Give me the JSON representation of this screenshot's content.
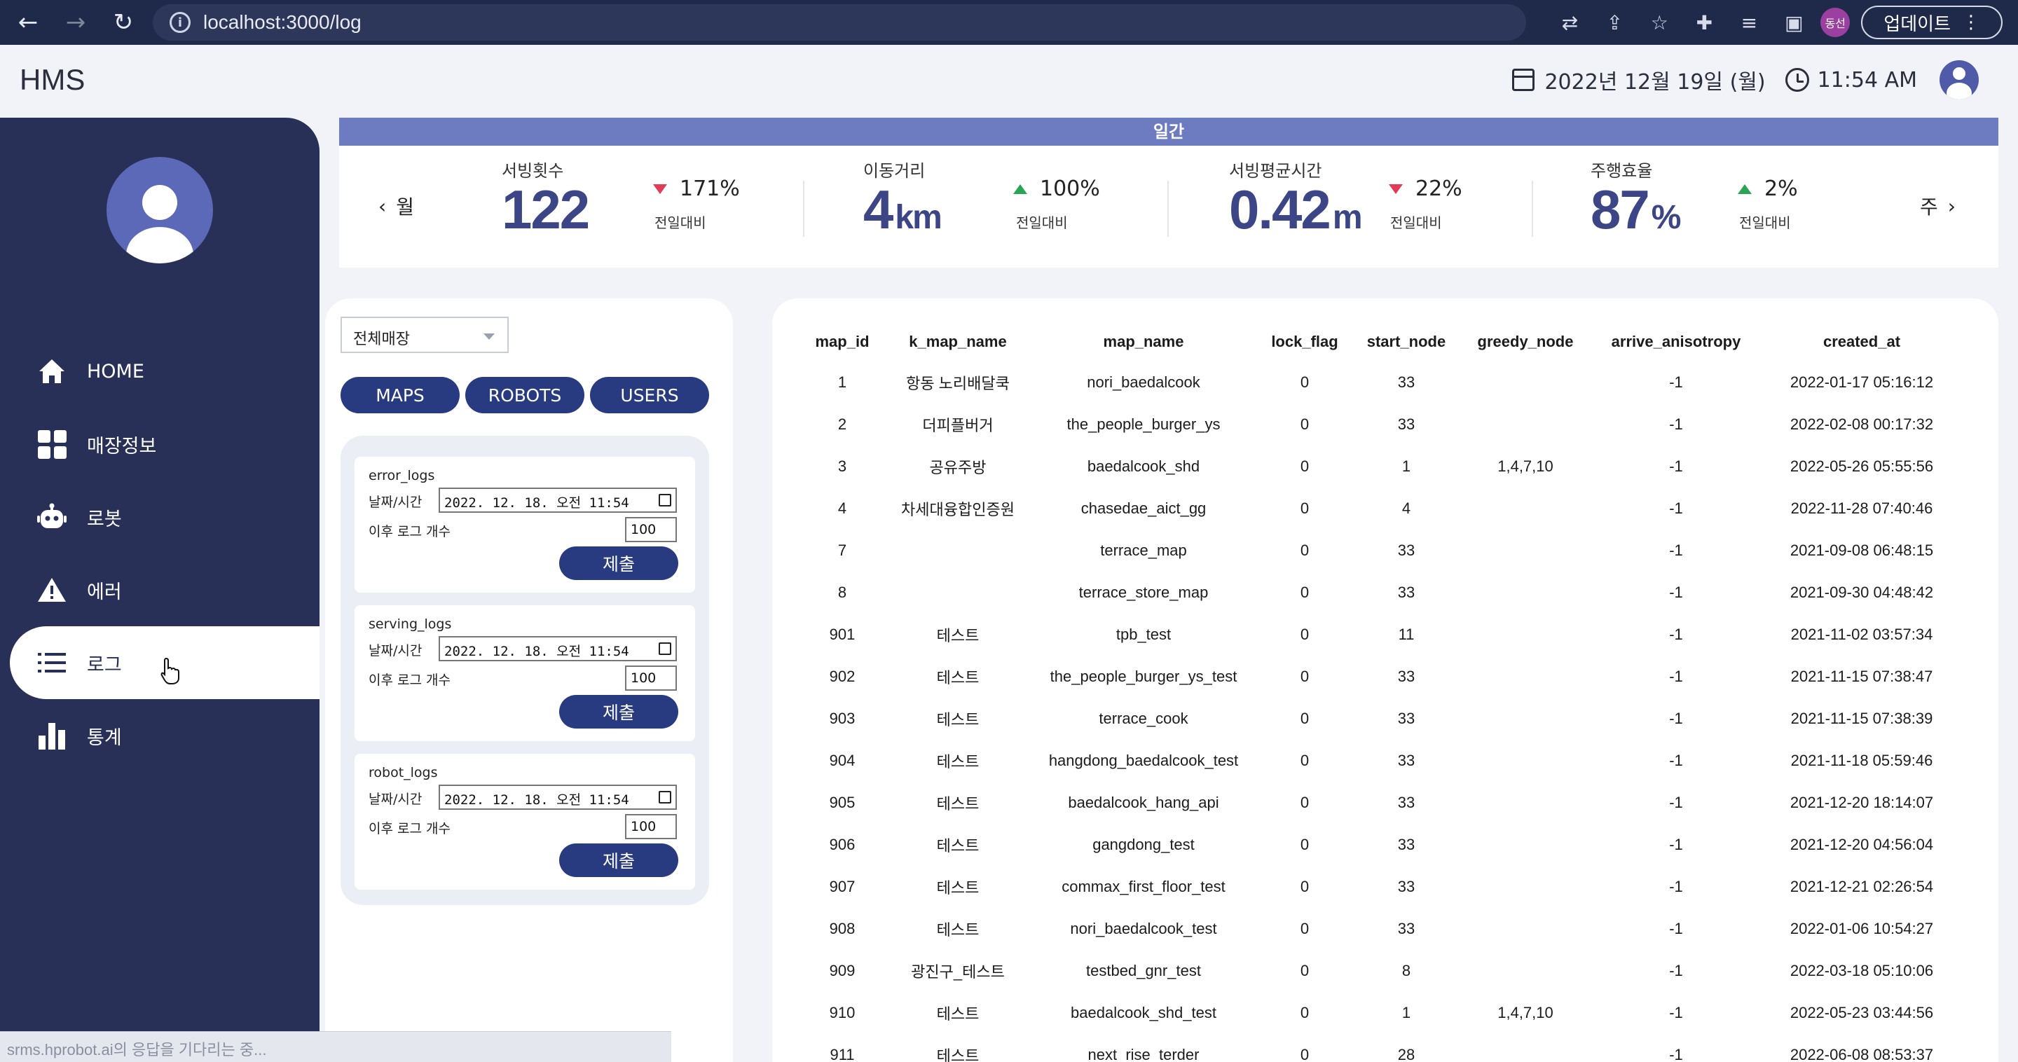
{
  "browser": {
    "url": "localhost:3000/log",
    "profile_label": "동선",
    "update_label": "업데이트",
    "icons": [
      "back-arrow-icon",
      "forward-arrow-icon",
      "reload-icon",
      "info-icon",
      "translate-icon",
      "share-icon",
      "star-icon",
      "extensions-icon",
      "media-icon",
      "sidebar-icon",
      "more-icon"
    ]
  },
  "header": {
    "logo": "HMS",
    "date": "2022년 12월 19일 (월)",
    "time": "11:54 AM"
  },
  "sidebar": {
    "items": [
      {
        "label": "HOME",
        "icon": "home-icon"
      },
      {
        "label": "매장정보",
        "icon": "grid-icon"
      },
      {
        "label": "로봇",
        "icon": "robot-icon"
      },
      {
        "label": "에러",
        "icon": "warning-icon"
      },
      {
        "label": "로그",
        "icon": "list-icon",
        "active": true
      },
      {
        "label": "통계",
        "icon": "bar-chart-icon"
      }
    ]
  },
  "status_bar": {
    "text": "srms.hprobot.ai의 응답을 기다리는 중..."
  },
  "stats": {
    "title": "일간",
    "prev_label": "월",
    "next_label": "주",
    "items": [
      {
        "label": "서빙횟수",
        "value": "122",
        "unit": "",
        "delta": "171%",
        "direction": "down",
        "sub": "전일대비"
      },
      {
        "label": "이동거리",
        "value": "4",
        "unit": "km",
        "delta": "100%",
        "direction": "up",
        "sub": "전일대비"
      },
      {
        "label": "서빙평균시간",
        "value": "0.42",
        "unit": "m",
        "delta": "22%",
        "direction": "down",
        "sub": "전일대비"
      },
      {
        "label": "주행효율",
        "value": "87",
        "unit": "%",
        "delta": "2%",
        "direction": "up",
        "sub": "전일대비"
      }
    ],
    "colors": {
      "accent": "#6d7bc0",
      "value": "#3c4585",
      "down": "#e03c5a",
      "up": "#2aa556"
    }
  },
  "filters": {
    "store_select": "전체매장",
    "buttons": [
      "MAPS",
      "ROBOTS",
      "USERS"
    ]
  },
  "log_forms": [
    {
      "title": "error_logs",
      "datetime_label": "날짜/시간",
      "datetime_value": "2022. 12. 18. 오전 11:54",
      "count_label": "이후 로그 개수",
      "count_value": "100",
      "submit_label": "제출"
    },
    {
      "title": "serving_logs",
      "datetime_label": "날짜/시간",
      "datetime_value": "2022. 12. 18. 오전 11:54",
      "count_label": "이후 로그 개수",
      "count_value": "100",
      "submit_label": "제출"
    },
    {
      "title": "robot_logs",
      "datetime_label": "날짜/시간",
      "datetime_value": "2022. 12. 18. 오전 11:54",
      "count_label": "이후 로그 개수",
      "count_value": "100",
      "submit_label": "제출"
    }
  ],
  "table": {
    "columns": [
      "map_id",
      "k_map_name",
      "map_name",
      "lock_flag",
      "start_node",
      "greedy_node",
      "arrive_anisotropy",
      "created_at"
    ],
    "rows": [
      [
        "1",
        "항동 노리배달쿡",
        "nori_baedalcook",
        "0",
        "33",
        "",
        "-1",
        "2022-01-17 05:16:12"
      ],
      [
        "2",
        "더피플버거",
        "the_people_burger_ys",
        "0",
        "33",
        "",
        "-1",
        "2022-02-08 00:17:32"
      ],
      [
        "3",
        "공유주방",
        "baedalcook_shd",
        "0",
        "1",
        "1,4,7,10",
        "-1",
        "2022-05-26 05:55:56"
      ],
      [
        "4",
        "차세대융합인증원",
        "chasedae_aict_gg",
        "0",
        "4",
        "",
        "-1",
        "2022-11-28 07:40:46"
      ],
      [
        "7",
        "",
        "terrace_map",
        "0",
        "33",
        "",
        "-1",
        "2021-09-08 06:48:15"
      ],
      [
        "8",
        "",
        "terrace_store_map",
        "0",
        "33",
        "",
        "-1",
        "2021-09-30 04:48:42"
      ],
      [
        "901",
        "테스트",
        "tpb_test",
        "0",
        "11",
        "",
        "-1",
        "2021-11-02 03:57:34"
      ],
      [
        "902",
        "테스트",
        "the_people_burger_ys_test",
        "0",
        "33",
        "",
        "-1",
        "2021-11-15 07:38:47"
      ],
      [
        "903",
        "테스트",
        "terrace_cook",
        "0",
        "33",
        "",
        "-1",
        "2021-11-15 07:38:39"
      ],
      [
        "904",
        "테스트",
        "hangdong_baedalcook_test",
        "0",
        "33",
        "",
        "-1",
        "2021-11-18 05:59:46"
      ],
      [
        "905",
        "테스트",
        "baedalcook_hang_api",
        "0",
        "33",
        "",
        "-1",
        "2021-12-20 18:14:07"
      ],
      [
        "906",
        "테스트",
        "gangdong_test",
        "0",
        "33",
        "",
        "-1",
        "2021-12-20 04:56:04"
      ],
      [
        "907",
        "테스트",
        "commax_first_floor_test",
        "0",
        "33",
        "",
        "-1",
        "2021-12-21 02:26:54"
      ],
      [
        "908",
        "테스트",
        "nori_baedalcook_test",
        "0",
        "33",
        "",
        "-1",
        "2022-01-06 10:54:27"
      ],
      [
        "909",
        "광진구_테스트",
        "testbed_gnr_test",
        "0",
        "8",
        "",
        "-1",
        "2022-03-18 05:10:06"
      ],
      [
        "910",
        "테스트",
        "baedalcook_shd_test",
        "0",
        "1",
        "1,4,7,10",
        "-1",
        "2022-05-23 03:44:56"
      ],
      [
        "911",
        "테스트",
        "next_rise_terder",
        "0",
        "28",
        "",
        "-1",
        "2022-06-08 08:53:37"
      ]
    ]
  }
}
